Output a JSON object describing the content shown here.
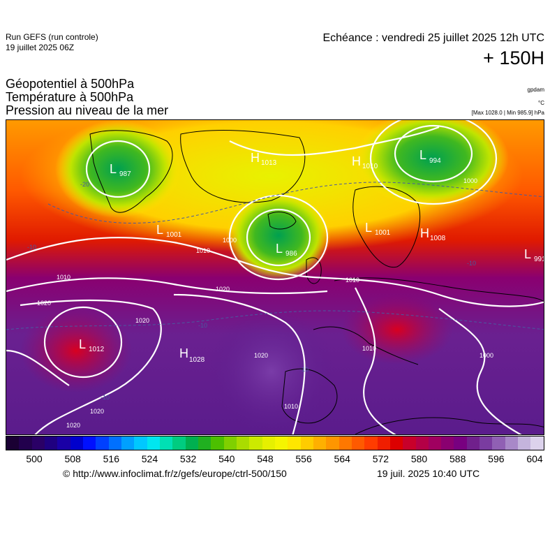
{
  "header": {
    "run_title": "Run GEFS (run controle)",
    "run_date": "19 juillet 2025 06Z",
    "echeance": "Echéance : vendredi 25 juillet 2025 12h UTC",
    "horizon": "+ 150H"
  },
  "variables": [
    {
      "label": "Géopotentiel à 500hPa",
      "unit": "gpdam"
    },
    {
      "label": "Température à 500hPa",
      "unit": "°C"
    },
    {
      "label": "Pression au niveau de la mer",
      "unit": "[Max 1028.0 | Min 985.9] hPa"
    }
  ],
  "pressure_centers": [
    {
      "type": "L",
      "value": "987"
    },
    {
      "type": "H",
      "value": "1013"
    },
    {
      "type": "H",
      "value": "1010"
    },
    {
      "type": "L",
      "value": "994"
    },
    {
      "type": "L",
      "value": "1001"
    },
    {
      "type": "L",
      "value": "986"
    },
    {
      "type": "L",
      "value": "1001"
    },
    {
      "type": "H",
      "value": "1008"
    },
    {
      "type": "L",
      "value": "991"
    },
    {
      "type": "L",
      "value": "1012"
    },
    {
      "type": "H",
      "value": "1028"
    }
  ],
  "isobar_labels": [
    "1000",
    "1010",
    "1020",
    "1010",
    "1020",
    "1020",
    "1020",
    "1010",
    "1000",
    "1010",
    "1020",
    "1000",
    "1010",
    "1020"
  ],
  "temperature_labels": [
    "-20",
    "-10",
    "-10",
    "-10",
    "-10",
    "-10"
  ],
  "scale": {
    "colors": [
      "#1a0033",
      "#22004d",
      "#2a0066",
      "#1f0080",
      "#1a00a6",
      "#0000cc",
      "#0010ff",
      "#0040ff",
      "#0070ff",
      "#00a0ff",
      "#00c8ff",
      "#00e6f0",
      "#00e0b4",
      "#00cc80",
      "#00b050",
      "#20b020",
      "#4cc000",
      "#80d000",
      "#aadc00",
      "#ccea00",
      "#e6f000",
      "#f5f500",
      "#ffe600",
      "#ffcc00",
      "#ffb000",
      "#ff9600",
      "#ff7800",
      "#ff5a00",
      "#ff3c00",
      "#f01e00",
      "#dc0000",
      "#c8002a",
      "#b40046",
      "#a00060",
      "#8a0070",
      "#780080",
      "#70208c",
      "#7a3ca0",
      "#9060b4",
      "#a888c8",
      "#c4b4dc",
      "#dcd2ec"
    ],
    "ticks": [
      "500",
      "508",
      "516",
      "524",
      "532",
      "540",
      "548",
      "556",
      "564",
      "572",
      "580",
      "588",
      "596",
      "604"
    ]
  },
  "footer": {
    "copyright": "© http://www.infoclimat.fr/z/gefs/europe/ctrl-500/150",
    "generated": "19 juil. 2025 10:40 UTC"
  }
}
